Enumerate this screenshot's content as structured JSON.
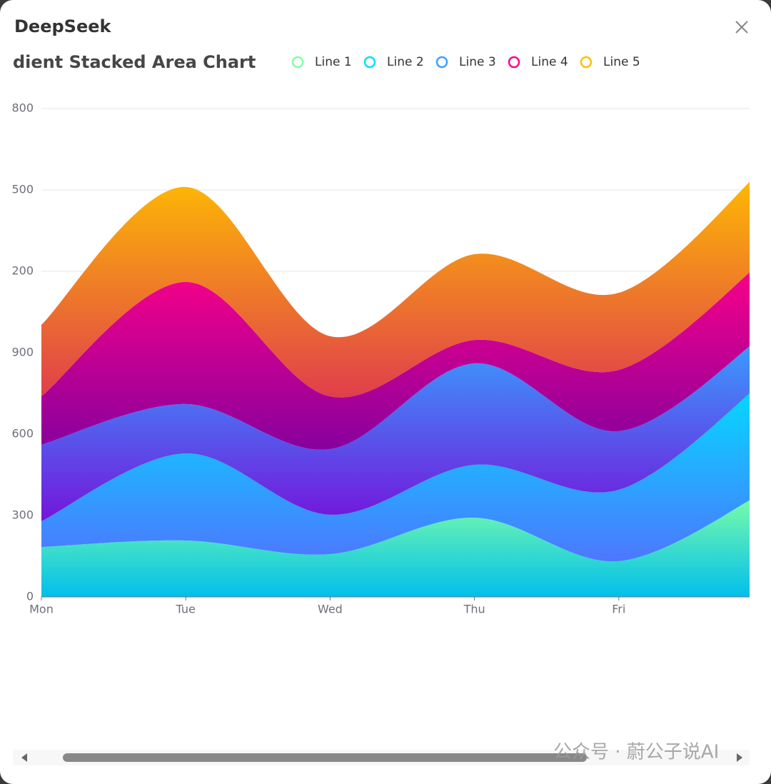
{
  "dialog": {
    "title": "DeepSeek",
    "watermark": "公众号 · 蔚公子说AI"
  },
  "chart_data": {
    "type": "area",
    "stacked": true,
    "smooth": true,
    "title": "dient Stacked Area Chart",
    "categories": [
      "Mon",
      "Tue",
      "Wed",
      "Thu",
      "Fri",
      null
    ],
    "series": [
      {
        "name": "Line 1",
        "color": "#80ffa5",
        "color_end": "#01bfec",
        "values": [
          184,
          208,
          158,
          292,
          132,
          384
        ]
      },
      {
        "name": "Line 2",
        "color": "#00ddff",
        "color_end": "#4d77ff",
        "values": [
          95,
          321,
          145,
          195,
          263,
          408
        ]
      },
      {
        "name": "Line 3",
        "color": "#37a2ff",
        "color_end": "#7415db",
        "values": [
          282,
          182,
          242,
          374,
          216,
          171
        ]
      },
      {
        "name": "Line 4",
        "color": "#ff0087",
        "color_end": "#87009d",
        "values": [
          178,
          450,
          194,
          86,
          226,
          276
        ]
      },
      {
        "name": "Line 5",
        "color": "#ffbf00",
        "color_end": "#e03e4c",
        "values": [
          264,
          350,
          222,
          316,
          284,
          340
        ]
      }
    ],
    "ylim": [
      0,
      1800
    ],
    "yticks": [
      0,
      300,
      600,
      900,
      {
        "value": 1200,
        "label": "200"
      },
      {
        "value": 1500,
        "label": "500"
      },
      {
        "value": 1800,
        "label": "800"
      }
    ],
    "grid": true
  }
}
